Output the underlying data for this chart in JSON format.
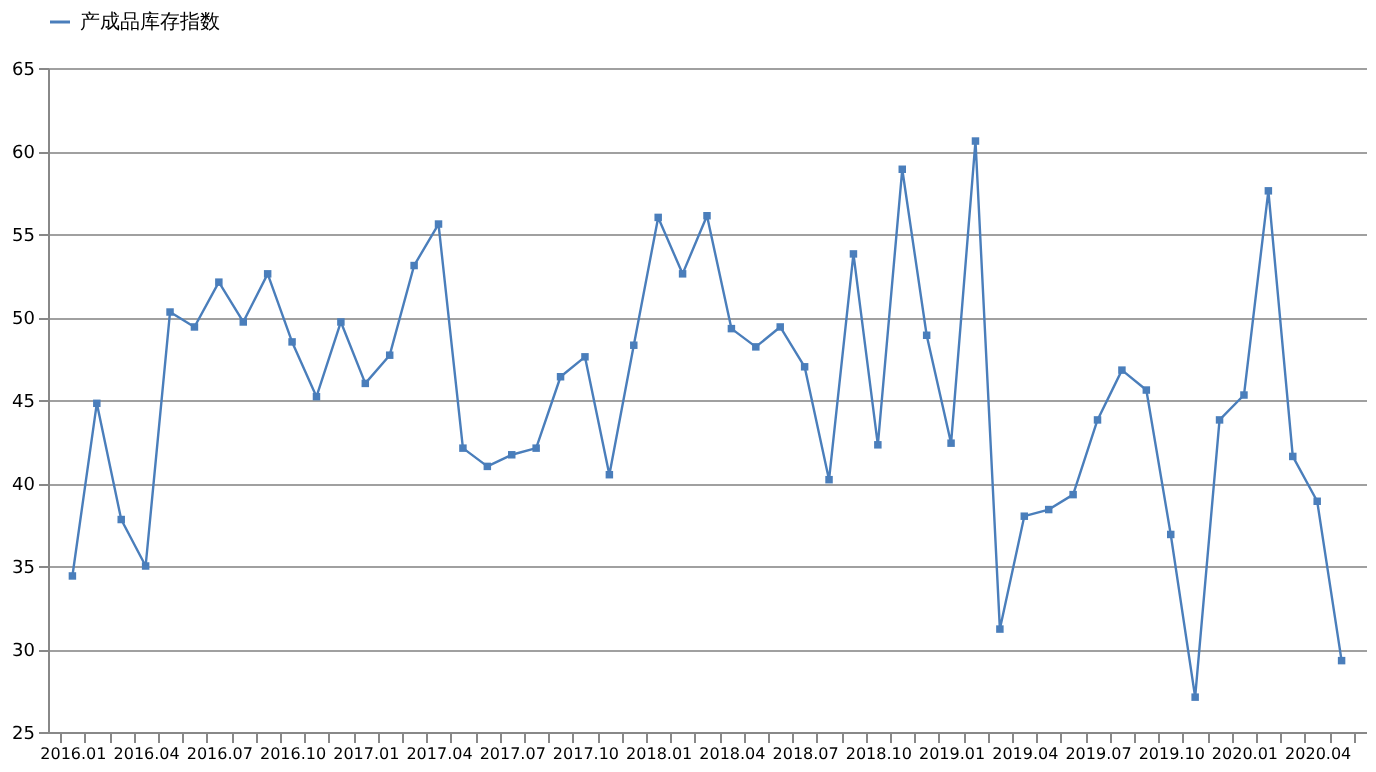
{
  "chart_data": {
    "type": "line",
    "categories": [
      "2016.01",
      null,
      null,
      "2016.04",
      null,
      null,
      "2016.07",
      null,
      null,
      "2016.10",
      null,
      null,
      "2017.01",
      null,
      null,
      "2017.04",
      null,
      null,
      "2017.07",
      null,
      null,
      "2017.10",
      null,
      null,
      "2018.01",
      null,
      null,
      "2018.04",
      null,
      null,
      "2018.07",
      null,
      null,
      "2018.10",
      null,
      null,
      "2019.01",
      null,
      null,
      "2019.04",
      null,
      null,
      "2019.07",
      null,
      null,
      "2019.10",
      null,
      null,
      "2020.01",
      null,
      null,
      "2020.04",
      null
    ],
    "series": [
      {
        "name": "产成品库存指数",
        "color": "#4a7ebb",
        "values": [
          34.4,
          44.8,
          37.8,
          35.0,
          50.3,
          49.4,
          52.1,
          49.7,
          52.6,
          48.5,
          45.2,
          49.7,
          46.0,
          47.7,
          53.1,
          55.6,
          42.1,
          41.0,
          41.7,
          42.1,
          46.4,
          47.6,
          40.5,
          48.3,
          56.0,
          52.6,
          56.1,
          49.3,
          48.2,
          49.4,
          47.0,
          40.2,
          53.8,
          42.3,
          58.9,
          48.9,
          42.4,
          60.6,
          31.2,
          38.0,
          38.4,
          39.3,
          43.8,
          46.8,
          45.6,
          36.9,
          27.1,
          43.8,
          45.3,
          57.6,
          41.6,
          38.9,
          29.3
        ]
      }
    ],
    "ylim": [
      25,
      65
    ],
    "yticks": [
      25,
      30,
      35,
      40,
      45,
      50,
      55,
      60,
      65
    ],
    "grid": "y",
    "legend": "top",
    "marker": "square",
    "line_style": "solid"
  }
}
